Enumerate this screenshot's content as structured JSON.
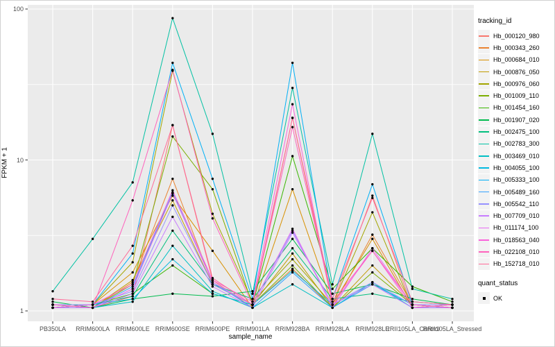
{
  "figure": {
    "background": "#ffffff",
    "panel_background": "#ebebeb",
    "grid_color": "#ffffff",
    "axis_text_color": "#4d4d4d",
    "point_color": "#000000"
  },
  "chart_data": {
    "type": "line",
    "title": "",
    "xlabel": "sample_name",
    "ylabel": "FPKM + 1",
    "yscale": "log10",
    "ylim": [
      0.85,
      106
    ],
    "yticks": [
      1,
      10,
      100
    ],
    "grid": true,
    "legend_position": "right",
    "legend_title": "tracking_id",
    "categories": [
      "PB350LA",
      "RRIM600LA",
      "RRIM600LE",
      "RRIM600SE",
      "RRIM600PE",
      "RRIM901LA",
      "RRIM928BA",
      "RRIM928LA",
      "RRIM928LE",
      "RRII105LA_Control",
      "RRII105LA_Stressed"
    ],
    "series": [
      {
        "name": "Hb_000120_980",
        "color": "#F8766D",
        "values": [
          1.05,
          1.05,
          1.25,
          17.0,
          1.6,
          1.05,
          19.0,
          1.1,
          5.8,
          1.05,
          1.05
        ]
      },
      {
        "name": "Hb_000343_260",
        "color": "#EA8331",
        "values": [
          1.1,
          1.05,
          1.55,
          7.5,
          1.5,
          1.1,
          1.9,
          1.05,
          3.2,
          1.1,
          1.05
        ]
      },
      {
        "name": "Hb_000684_010",
        "color": "#D89000",
        "values": [
          1.05,
          1.1,
          1.8,
          5.8,
          2.5,
          1.05,
          6.4,
          1.1,
          3.0,
          1.05,
          1.1
        ]
      },
      {
        "name": "Hb_000876_050",
        "color": "#C09B00",
        "values": [
          1.1,
          1.05,
          1.6,
          5.4,
          1.5,
          1.1,
          2.4,
          1.05,
          2.0,
          1.1,
          1.05
        ]
      },
      {
        "name": "Hb_000976_060",
        "color": "#A3A500",
        "values": [
          1.05,
          1.1,
          2.1,
          39.0,
          4.4,
          1.15,
          2.2,
          1.1,
          4.5,
          1.05,
          1.1
        ]
      },
      {
        "name": "Hb_001009_110",
        "color": "#7CAE00",
        "values": [
          1.1,
          1.05,
          1.5,
          14.3,
          6.4,
          1.1,
          2.0,
          1.05,
          1.8,
          1.1,
          1.05
        ]
      },
      {
        "name": "Hb_001454_160",
        "color": "#39B600",
        "values": [
          1.05,
          1.1,
          1.3,
          2.0,
          1.3,
          1.1,
          10.6,
          1.4,
          2.6,
          1.45,
          1.15
        ]
      },
      {
        "name": "Hb_001907_020",
        "color": "#00BB4E",
        "values": [
          1.15,
          1.05,
          1.2,
          1.3,
          1.25,
          1.35,
          3.0,
          1.3,
          1.5,
          1.2,
          1.1
        ]
      },
      {
        "name": "Hb_002475_100",
        "color": "#00BF7D",
        "values": [
          1.05,
          1.1,
          1.25,
          3.4,
          1.5,
          1.2,
          2.6,
          1.2,
          1.3,
          1.15,
          1.1
        ]
      },
      {
        "name": "Hb_002783_300",
        "color": "#00C1A3",
        "values": [
          1.35,
          3.0,
          7.1,
          87.0,
          14.9,
          1.3,
          30.0,
          1.5,
          14.9,
          1.4,
          1.2
        ]
      },
      {
        "name": "Hb_003469_010",
        "color": "#00BFC4",
        "values": [
          1.1,
          1.05,
          1.15,
          2.7,
          1.35,
          1.05,
          1.5,
          1.05,
          1.55,
          1.05,
          1.05
        ]
      },
      {
        "name": "Hb_004055_100",
        "color": "#00BAE0",
        "values": [
          1.05,
          1.1,
          1.2,
          2.2,
          1.3,
          1.1,
          1.85,
          1.1,
          1.5,
          1.1,
          1.05
        ]
      },
      {
        "name": "Hb_005333_100",
        "color": "#00B0F6",
        "values": [
          1.1,
          1.1,
          2.4,
          44.0,
          7.5,
          1.2,
          44.0,
          1.2,
          6.9,
          1.1,
          1.1
        ]
      },
      {
        "name": "Hb_005489_160",
        "color": "#35A2FF",
        "values": [
          1.05,
          1.05,
          1.45,
          6.1,
          1.55,
          1.05,
          1.8,
          1.05,
          1.5,
          1.05,
          1.05
        ]
      },
      {
        "name": "Hb_005542_110",
        "color": "#9590FF",
        "values": [
          1.1,
          1.1,
          1.35,
          5.0,
          1.5,
          1.1,
          3.4,
          1.1,
          1.55,
          1.1,
          1.1
        ]
      },
      {
        "name": "Hb_007709_010",
        "color": "#C77CFF",
        "values": [
          1.05,
          1.05,
          1.3,
          4.2,
          1.45,
          1.05,
          3.3,
          1.1,
          1.5,
          1.05,
          1.05
        ]
      },
      {
        "name": "Hb_011174_100",
        "color": "#E76BF3",
        "values": [
          1.1,
          1.05,
          1.4,
          6.0,
          1.55,
          1.1,
          3.5,
          1.05,
          2.6,
          1.1,
          1.05
        ]
      },
      {
        "name": "Hb_018563_040",
        "color": "#FA62DB",
        "values": [
          1.05,
          1.1,
          1.5,
          6.3,
          1.6,
          1.15,
          23.4,
          1.1,
          2.5,
          1.05,
          1.1
        ]
      },
      {
        "name": "Hb_022108_010",
        "color": "#FF62BC",
        "values": [
          1.1,
          1.05,
          5.4,
          39.5,
          4.1,
          1.1,
          16.5,
          1.15,
          2.5,
          1.1,
          1.05
        ]
      },
      {
        "name": "Hb_152718_010",
        "color": "#FF6A98",
        "values": [
          1.2,
          1.15,
          2.7,
          17.0,
          1.65,
          1.1,
          19.0,
          1.2,
          5.6,
          1.15,
          1.1
        ]
      }
    ],
    "points": {
      "legend_title": "quant_status",
      "label": "OK",
      "color": "#000000"
    }
  }
}
